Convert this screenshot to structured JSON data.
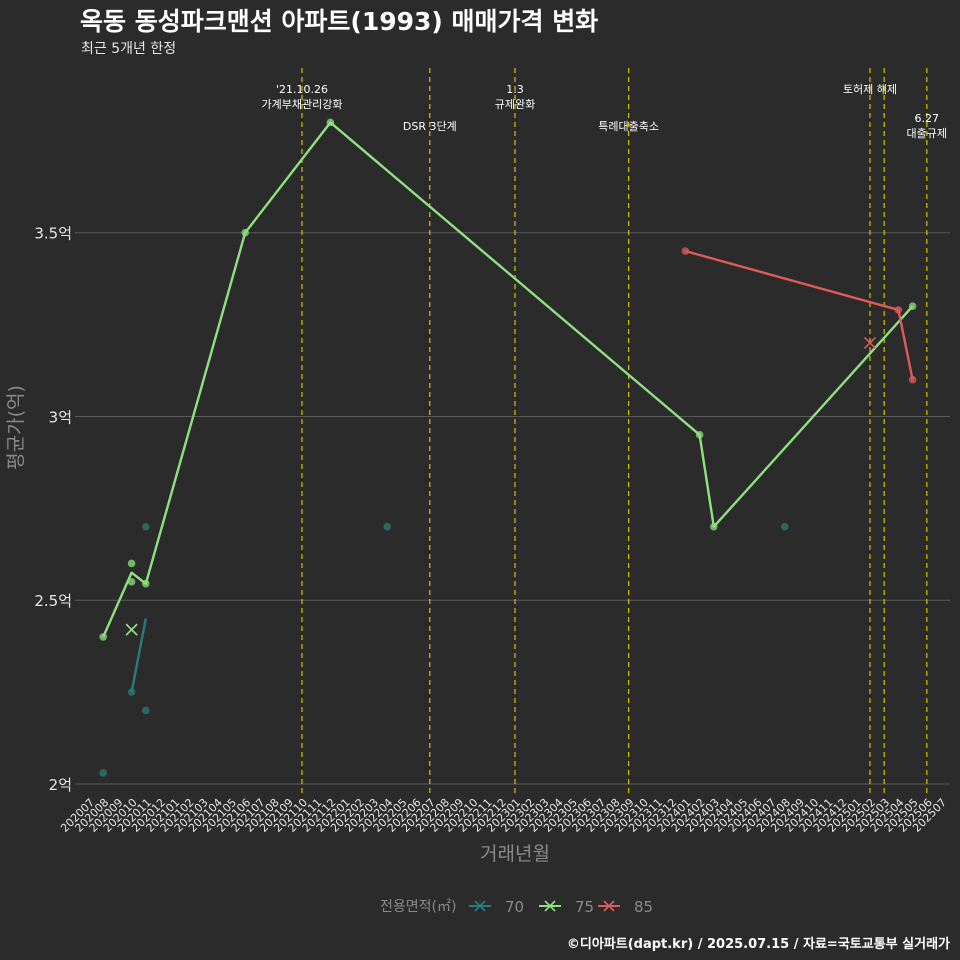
{
  "title": "옥동 동성파크맨션 아파트(1993) 매매가격 변화",
  "subtitle": "최근 5개년 한정",
  "caption": "©디아파트(dapt.kr) / 2025.07.15 / 자료=국토교통부 실거래가",
  "colors": {
    "background": "#2b2b2b",
    "grid": "#5a5a5a",
    "event_line": "#d4c400",
    "series_70": "#2a7c7a",
    "series_75": "#8fe080",
    "series_85": "#e05a5a"
  },
  "chart_data": {
    "type": "line",
    "xlabel": "거래년월",
    "ylabel": "평균가(억)",
    "ylim": [
      1.97,
      3.97
    ],
    "x_categories": [
      "202007",
      "202008",
      "202009",
      "202010",
      "202011",
      "202012",
      "202101",
      "202102",
      "202103",
      "202104",
      "202105",
      "202106",
      "202107",
      "202108",
      "202109",
      "202110",
      "202111",
      "202112",
      "202201",
      "202202",
      "202203",
      "202204",
      "202205",
      "202206",
      "202207",
      "202208",
      "202209",
      "202210",
      "202211",
      "202212",
      "202301",
      "202302",
      "202303",
      "202304",
      "202305",
      "202306",
      "202307",
      "202308",
      "202309",
      "202310",
      "202311",
      "202312",
      "202401",
      "202402",
      "202403",
      "202404",
      "202405",
      "202406",
      "202407",
      "202408",
      "202409",
      "202410",
      "202411",
      "202412",
      "202501",
      "202502",
      "202503",
      "202504",
      "202505",
      "202506",
      "202507"
    ],
    "y_ticks": [
      {
        "value": 2.0,
        "label": "2억"
      },
      {
        "value": 2.5,
        "label": "2.5억"
      },
      {
        "value": 3.0,
        "label": "3억"
      },
      {
        "value": 3.5,
        "label": "3.5억"
      }
    ],
    "legend": {
      "title": "전용면적(㎡)",
      "position": "bottom",
      "items": [
        "70",
        "75",
        "85"
      ]
    },
    "events": [
      {
        "month": "202110",
        "label": "'21.10.26\n가계부채관리강화",
        "row": 0
      },
      {
        "month": "202207",
        "label": "DSR 3단계",
        "row": 2
      },
      {
        "month": "202301",
        "label": "1.3\n규제완화",
        "row": 0
      },
      {
        "month": "202309",
        "label": "특례대출축소",
        "row": 2
      },
      {
        "month": "202502",
        "label": "토허제 해제",
        "row": 1
      },
      {
        "month": "202503",
        "label": "",
        "row": 1
      },
      {
        "month": "202506",
        "label": "6.27\n대출규제",
        "row": 3
      }
    ],
    "series": [
      {
        "name": "70",
        "line": [
          {
            "x": "202010",
            "y": 2.25
          },
          {
            "x": "202011",
            "y": 2.45
          }
        ],
        "points": [
          {
            "x": "202008",
            "y": 2.03
          },
          {
            "x": "202010",
            "y": 2.25
          },
          {
            "x": "202011",
            "y": 2.2
          },
          {
            "x": "202011",
            "y": 2.7
          },
          {
            "x": "202204",
            "y": 2.7
          },
          {
            "x": "202408",
            "y": 2.7
          }
        ]
      },
      {
        "name": "75",
        "line": [
          {
            "x": "202008",
            "y": 2.4
          },
          {
            "x": "202010",
            "y": 2.575
          },
          {
            "x": "202011",
            "y": 2.545
          },
          {
            "x": "202106",
            "y": 3.5
          },
          {
            "x": "202112",
            "y": 3.8
          },
          {
            "x": "202402",
            "y": 2.95
          },
          {
            "x": "202403",
            "y": 2.7
          },
          {
            "x": "202505",
            "y": 3.3
          }
        ],
        "points": [
          {
            "x": "202008",
            "y": 2.4
          },
          {
            "x": "202010",
            "y": 2.6
          },
          {
            "x": "202010",
            "y": 2.55
          },
          {
            "x": "202011",
            "y": 2.545
          },
          {
            "x": "202106",
            "y": 3.5
          },
          {
            "x": "202112",
            "y": 3.8
          },
          {
            "x": "202402",
            "y": 2.95
          },
          {
            "x": "202403",
            "y": 2.7
          },
          {
            "x": "202505",
            "y": 3.3
          }
        ]
      },
      {
        "name": "85",
        "line": [
          {
            "x": "202401",
            "y": 3.45
          },
          {
            "x": "202504",
            "y": 3.29
          },
          {
            "x": "202505",
            "y": 3.1
          }
        ],
        "points": [
          {
            "x": "202401",
            "y": 3.45
          },
          {
            "x": "202504",
            "y": 3.29
          },
          {
            "x": "202505",
            "y": 3.1
          }
        ]
      }
    ],
    "markers": [
      {
        "series": "70",
        "x": "202010",
        "y": 2.42
      },
      {
        "series": "75",
        "x": "202010",
        "y": 2.42
      },
      {
        "series": "85",
        "x": "202502",
        "y": 3.2
      }
    ]
  }
}
